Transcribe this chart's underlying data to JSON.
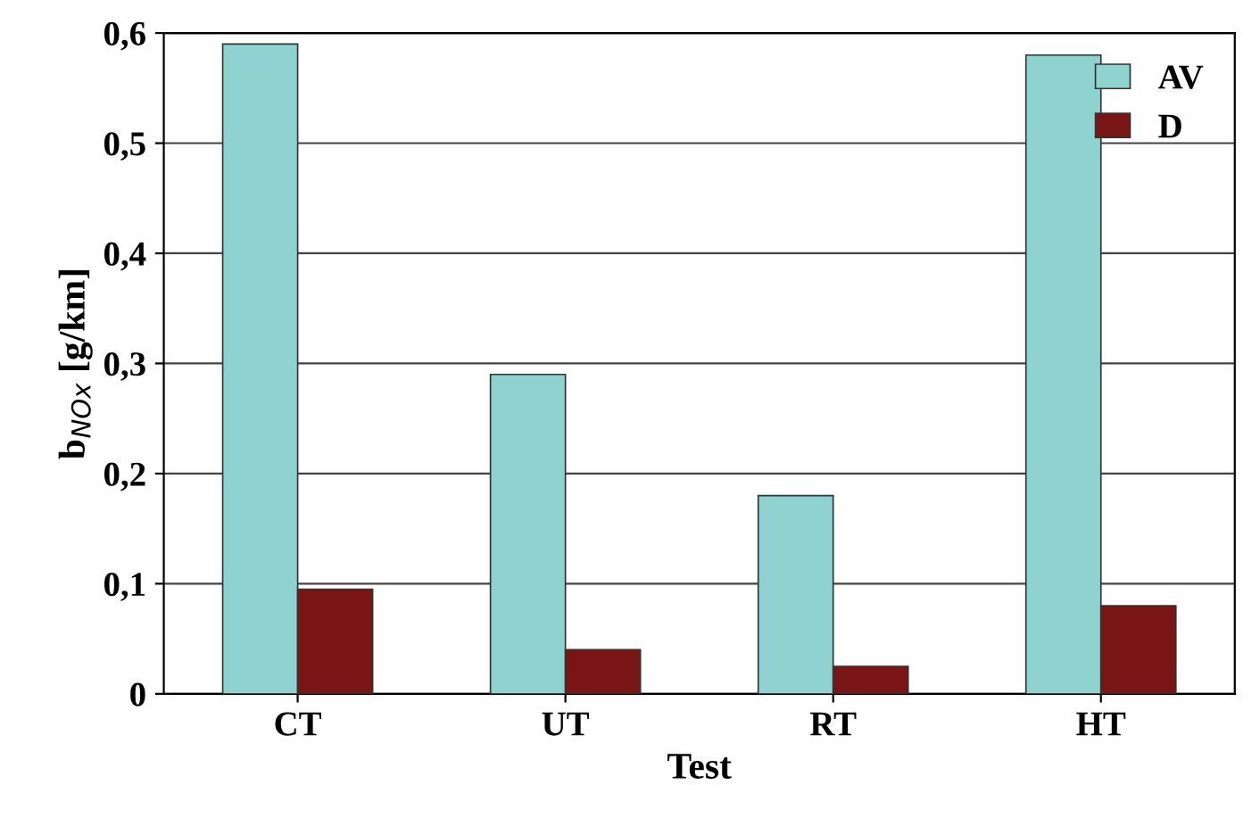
{
  "chart_data": {
    "type": "bar",
    "xlabel": "Test",
    "ylabel": "b$_{NOx}$ [g/km]",
    "categories": [
      "CT",
      "UT",
      "RT",
      "HT"
    ],
    "series": [
      {
        "name": "AV",
        "color": "#8fd3d0",
        "values": [
          0.59,
          0.29,
          0.18,
          0.58
        ]
      },
      {
        "name": "D",
        "color": "#7a1515",
        "values": [
          0.095,
          0.04,
          0.025,
          0.08
        ]
      }
    ],
    "ylim": [
      0,
      0.6
    ],
    "yticks": [
      {
        "value": 0,
        "label": "0"
      },
      {
        "value": 0.1,
        "label": "0,1"
      },
      {
        "value": 0.2,
        "label": "0,2"
      },
      {
        "value": 0.3,
        "label": "0,3"
      },
      {
        "value": 0.4,
        "label": "0,4"
      },
      {
        "value": 0.5,
        "label": "0,5"
      },
      {
        "value": 0.6,
        "label": "0,6"
      }
    ],
    "grid": "y",
    "legend": "top right"
  }
}
